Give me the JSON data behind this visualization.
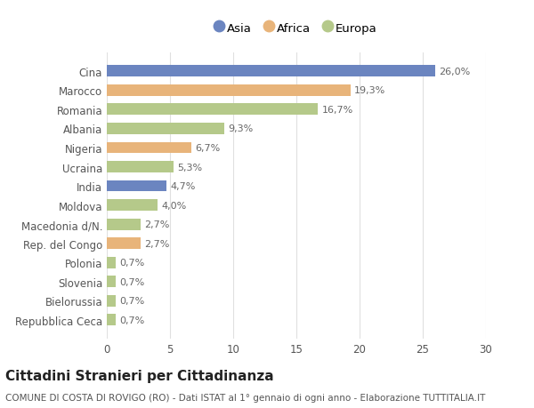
{
  "categories": [
    "Cina",
    "Marocco",
    "Romania",
    "Albania",
    "Nigeria",
    "Ucraina",
    "India",
    "Moldova",
    "Macedonia d/N.",
    "Rep. del Congo",
    "Polonia",
    "Slovenia",
    "Bielorussia",
    "Repubblica Ceca"
  ],
  "values": [
    26.0,
    19.3,
    16.7,
    9.3,
    6.7,
    5.3,
    4.7,
    4.0,
    2.7,
    2.7,
    0.7,
    0.7,
    0.7,
    0.7
  ],
  "labels": [
    "26,0%",
    "19,3%",
    "16,7%",
    "9,3%",
    "6,7%",
    "5,3%",
    "4,7%",
    "4,0%",
    "2,7%",
    "2,7%",
    "0,7%",
    "0,7%",
    "0,7%",
    "0,7%"
  ],
  "continent": [
    "Asia",
    "Africa",
    "Europa",
    "Europa",
    "Africa",
    "Europa",
    "Asia",
    "Europa",
    "Europa",
    "Africa",
    "Europa",
    "Europa",
    "Europa",
    "Europa"
  ],
  "colors": {
    "Asia": "#6b85c0",
    "Africa": "#e8b47a",
    "Europa": "#b5c98a"
  },
  "legend_labels": [
    "Asia",
    "Africa",
    "Europa"
  ],
  "title": "Cittadini Stranieri per Cittadinanza",
  "subtitle": "COMUNE DI COSTA DI ROVIGO (RO) - Dati ISTAT al 1° gennaio di ogni anno - Elaborazione TUTTITALIA.IT",
  "xlim": [
    0,
    30
  ],
  "xticks": [
    0,
    5,
    10,
    15,
    20,
    25,
    30
  ],
  "bg_color": "#ffffff",
  "plot_bg_color": "#ffffff",
  "grid_color": "#e0e0e0",
  "bar_height": 0.6,
  "title_fontsize": 11,
  "subtitle_fontsize": 7.5,
  "label_fontsize": 8,
  "tick_fontsize": 8.5,
  "legend_fontsize": 9.5
}
